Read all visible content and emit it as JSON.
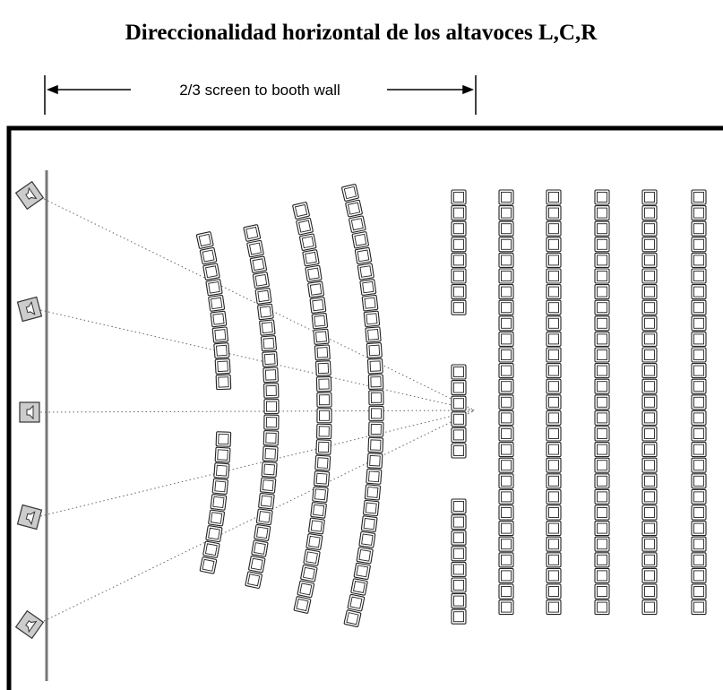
{
  "title": "Direccionalidad horizontal de los altavoces L,C,R",
  "dimension_label": "2/3 screen to booth wall"
}
